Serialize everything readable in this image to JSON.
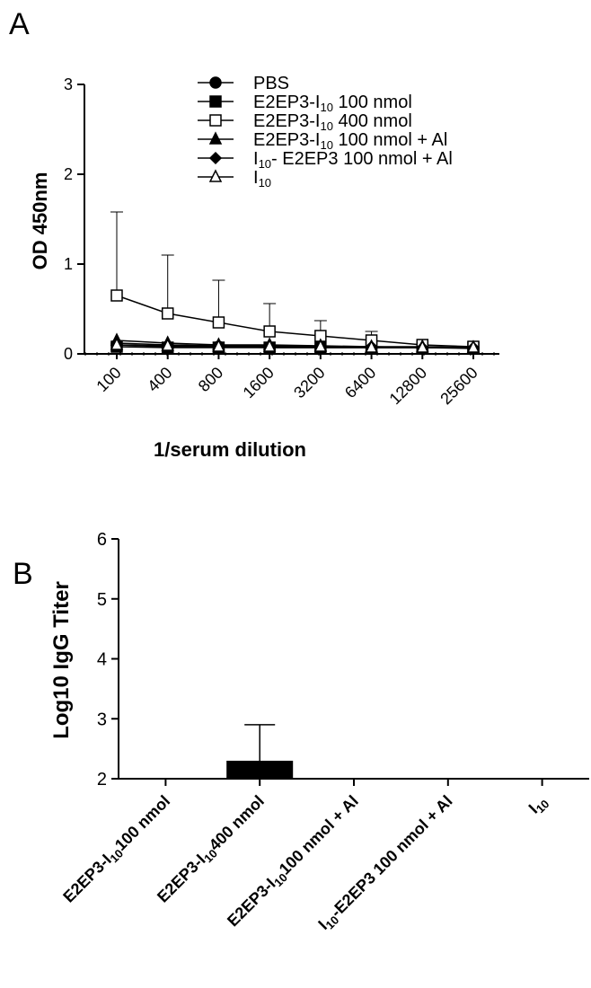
{
  "panel_a": {
    "label": "A",
    "chart_data": {
      "type": "line",
      "x_categories": [
        "100",
        "400",
        "800",
        "1600",
        "3200",
        "6400",
        "12800",
        "25600"
      ],
      "xlabel": "1/serum dilution",
      "ylabel": "OD 450nm",
      "ylim": [
        0,
        3
      ],
      "y_ticks": [
        "0",
        "1",
        "2",
        "3"
      ],
      "legend_position": "top-right",
      "series": [
        {
          "name": "PBS",
          "marker": "filled-circle",
          "values": [
            0.1,
            0.08,
            0.08,
            0.07,
            0.07,
            0.07,
            0.07,
            0.06
          ],
          "errors": [
            0,
            0,
            0,
            0,
            0,
            0,
            0,
            0
          ]
        },
        {
          "name": "E2EP3-I10 100 nmol",
          "name_parts": {
            "main": "E2EP3-I",
            "sub": "10",
            "rest": " 100 nmol"
          },
          "marker": "filled-square",
          "values": [
            0.08,
            0.07,
            0.07,
            0.07,
            0.07,
            0.07,
            0.07,
            0.07
          ],
          "errors": [
            0,
            0,
            0,
            0,
            0,
            0,
            0,
            0
          ]
        },
        {
          "name": "E2EP3-I10 400 nmol",
          "name_parts": {
            "main": "E2EP3-I",
            "sub": "10",
            "rest": " 400 nmol"
          },
          "marker": "open-square",
          "values": [
            0.65,
            0.45,
            0.35,
            0.25,
            0.2,
            0.15,
            0.1,
            0.08
          ],
          "errors": [
            0.93,
            0.65,
            0.47,
            0.31,
            0.17,
            0.1,
            0,
            0
          ]
        },
        {
          "name": "E2EP3-I10 100 nmol + Al",
          "name_parts": {
            "main": "E2EP3-I",
            "sub": "10",
            "rest": " 100 nmol + Al"
          },
          "marker": "filled-triangle",
          "values": [
            0.15,
            0.12,
            0.1,
            0.1,
            0.09,
            0.08,
            0.08,
            0.07
          ],
          "errors": [
            0,
            0,
            0,
            0,
            0,
            0,
            0,
            0
          ]
        },
        {
          "name": "I10- E2EP3 100 nmol + Al",
          "name_parts": {
            "main": "I",
            "sub": "10",
            "rest": "- E2EP3 100 nmol + Al"
          },
          "marker": "filled-diamond",
          "values": [
            0.12,
            0.1,
            0.09,
            0.09,
            0.08,
            0.08,
            0.07,
            0.07
          ],
          "errors": [
            0,
            0,
            0,
            0,
            0,
            0,
            0,
            0
          ]
        },
        {
          "name": "I10",
          "name_parts": {
            "main": "I",
            "sub": "10",
            "rest": ""
          },
          "marker": "open-triangle",
          "values": [
            0.1,
            0.09,
            0.08,
            0.08,
            0.08,
            0.07,
            0.07,
            0.07
          ],
          "errors": [
            0,
            0,
            0,
            0,
            0,
            0,
            0,
            0
          ]
        }
      ]
    }
  },
  "panel_b": {
    "label": "B",
    "chart_data": {
      "type": "bar",
      "categories": [
        "E2EP3-I10 100 nmol",
        "E2EP3-I10 400 nmol",
        "E2EP3-I10 100 nmol + Al",
        "I10-E2EP3 100 nmol + Al",
        "I10"
      ],
      "category_parts": [
        {
          "pre": "E2EP3-I",
          "sub": "10",
          "post": "100 nmol"
        },
        {
          "pre": "E2EP3-I",
          "sub": "10",
          "post": "400 nmol"
        },
        {
          "pre": "E2EP3-I",
          "sub": "10",
          "post": "100 nmol + Al"
        },
        {
          "pre": "I",
          "sub": "10",
          "post": "-E2EP3 100 nmol + Al"
        },
        {
          "pre": "I",
          "sub": "10",
          "post": ""
        }
      ],
      "values": [
        2,
        2.3,
        2,
        2,
        2
      ],
      "errors": [
        0,
        0.6,
        0,
        0,
        0
      ],
      "ylabel": "Log10 IgG Titer",
      "xlabel": "",
      "ylim": [
        2,
        6
      ],
      "y_ticks": [
        "2",
        "3",
        "4",
        "5",
        "6"
      ],
      "bar_color": "#000000"
    }
  }
}
